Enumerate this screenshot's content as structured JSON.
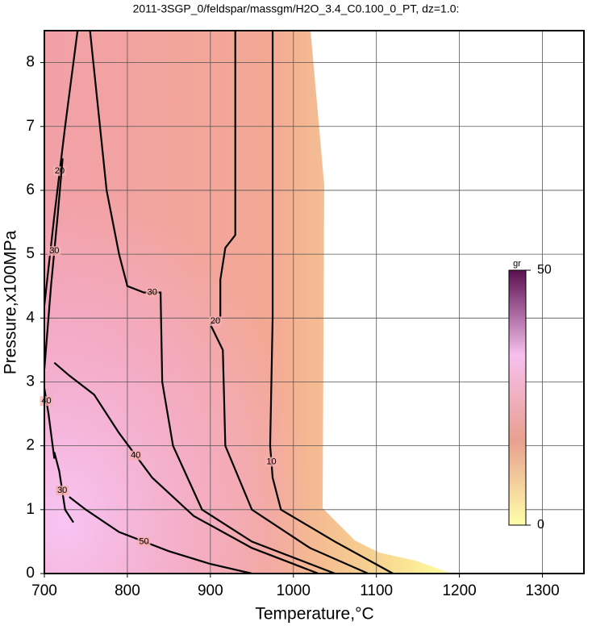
{
  "chart_data": {
    "type": "contour",
    "title": "2011-3SGP_0/feldspar/massgm/H2O_3.4_C0.100_0_PT, dz=1.0:",
    "xlabel": "Temperature,°C",
    "ylabel": "Pressure,x100MPa",
    "xlim": [
      700,
      1350
    ],
    "xticks": [
      700,
      800,
      900,
      1000,
      1100,
      1200,
      1300
    ],
    "ylim": [
      0,
      8.5
    ],
    "yticks": [
      0,
      1,
      2,
      3,
      4,
      5,
      6,
      7,
      8
    ],
    "grid": true,
    "contours": [
      {
        "level": 10,
        "x": [
          975,
          975,
          975,
          972,
          975,
          985,
          1050,
          1120
        ],
        "y": [
          8.5,
          6,
          4,
          2,
          1.5,
          1,
          0.5,
          0
        ]
      },
      {
        "level": 20,
        "x": [
          930,
          930,
          918,
          912,
          912,
          900,
          915,
          918,
          950,
          1020,
          1090
        ],
        "y": [
          8.5,
          5.3,
          5.1,
          4.6,
          4.0,
          3.9,
          3.5,
          2,
          1,
          0.4,
          0
        ]
      },
      {
        "level": 30,
        "x": [
          755,
          775,
          790,
          800,
          820,
          840,
          842,
          855,
          890,
          950,
          1050
        ],
        "y": [
          8.5,
          6,
          5,
          4.5,
          4.4,
          4.4,
          3,
          2,
          1,
          0.5,
          0
        ]
      },
      {
        "level": 40,
        "x": [
          712,
          730,
          760,
          790,
          830,
          880,
          950,
          1010,
          1030
        ],
        "y": [
          3.3,
          3.1,
          2.8,
          2.2,
          1.5,
          0.9,
          0.4,
          0.1,
          0
        ]
      },
      {
        "level": 50,
        "x": [
          730,
          750,
          790,
          850,
          900,
          950
        ],
        "y": [
          1.2,
          1.0,
          0.65,
          0.35,
          0.15,
          0
        ]
      },
      {
        "level": 20,
        "x": [
          700,
          712,
          725,
          740
        ],
        "y": [
          4.2,
          5.6,
          7,
          8.5
        ]
      },
      {
        "level": 30,
        "x": [
          700,
          708,
          716,
          722
        ],
        "y": [
          3.2,
          4.5,
          5.6,
          6.5
        ]
      },
      {
        "level": 40,
        "x": [
          700,
          705,
          712
        ],
        "y": [
          2.9,
          2.5,
          1.8
        ]
      },
      {
        "level": 30,
        "x": [
          712,
          718,
          725,
          735
        ],
        "y": [
          1.9,
          1.6,
          1.0,
          0.8
        ]
      }
    ],
    "colorbar": {
      "label": "gr",
      "lim": [
        0,
        50
      ],
      "ticks": [
        0,
        50
      ],
      "colors": [
        "#ffffaa",
        "#e8a090",
        "#f7c0ee",
        "#5a1050"
      ]
    }
  }
}
